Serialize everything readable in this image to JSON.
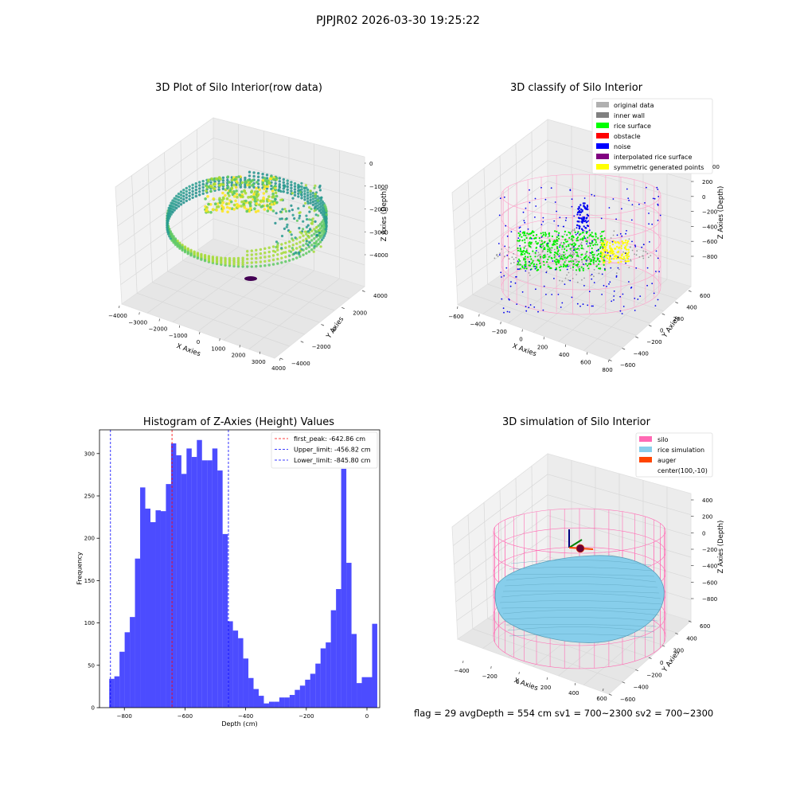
{
  "figure": {
    "suptitle": "PJPJR02 2026-03-30 19:25:22",
    "status_line": "flag = 29  avgDepth = 554 cm  sv1 = 700~2300  sv2 = 700~2300"
  },
  "panels": {
    "raw": {
      "title": "3D Plot of Silo Interior(row data)",
      "xlabel": "X Axies",
      "ylabel": "Y Axies",
      "zlabel": "Z Axies (Depth)",
      "xticks": [
        "−4000",
        "−3000",
        "−2000",
        "−1000",
        "0",
        "1000",
        "2000",
        "3000",
        "4000"
      ],
      "yticks": [
        "−4000",
        "−2000",
        "0",
        "2000",
        "4000"
      ],
      "zticks": [
        "0",
        "−1000",
        "−2000",
        "−3000",
        "−4000"
      ]
    },
    "classify": {
      "title": "3D classify of Silo Interior",
      "xlabel": "X Axies",
      "ylabel": "Y Axies",
      "zlabel": "Z Axies (Depth)",
      "xticks": [
        "−600",
        "−400",
        "−200",
        "0",
        "200",
        "400",
        "600",
        "800"
      ],
      "yticks": [
        "−600",
        "−400",
        "−200",
        "0",
        "200",
        "400",
        "600"
      ],
      "zticks": [
        "200",
        "0",
        "−200",
        "−400",
        "−600",
        "−800"
      ],
      "ztick_top_partial": "00",
      "legend": [
        {
          "label": "original data",
          "color": "#b0b0b0"
        },
        {
          "label": "inner wall",
          "color": "#808080"
        },
        {
          "label": "rice surface",
          "color": "#00ff00"
        },
        {
          "label": "obstacle",
          "color": "#ff0000"
        },
        {
          "label": "noise",
          "color": "#0000ff"
        },
        {
          "label": "interpolated rice surface",
          "color": "#800080"
        },
        {
          "label": "symmetric generated points",
          "color": "#ffff00"
        }
      ]
    },
    "simulation": {
      "title": "3D simulation of Silo Interior",
      "xlabel": "X Axies",
      "ylabel": "Y Axies",
      "zlabel": "Z Axies (Depth)",
      "xticks": [
        "−400",
        "−200",
        "0",
        "200",
        "400",
        "600"
      ],
      "yticks": [
        "−600",
        "−400",
        "−200",
        "0",
        "200",
        "400",
        "600"
      ],
      "zticks": [
        "400",
        "200",
        "0",
        "−200",
        "−400",
        "−600",
        "−800"
      ],
      "legend": [
        {
          "label": "silo",
          "color": "#ff69b4"
        },
        {
          "label": "rice simulation",
          "color": "#87ceeb"
        },
        {
          "label": "auger",
          "color": "#ff4500"
        },
        {
          "label": "center(100,-10)",
          "color": ""
        }
      ]
    }
  },
  "chart_data": {
    "type": "bar",
    "title": "Histogram of Z-Axies (Height) Values",
    "xlabel": "Depth (cm)",
    "ylabel": "Frequency",
    "xlim": [
      -882,
      42
    ],
    "ylim": [
      0,
      328
    ],
    "xticks": [
      -800,
      -600,
      -400,
      -200,
      0
    ],
    "yticks": [
      0,
      50,
      100,
      150,
      200,
      250,
      300
    ],
    "bar_color": "#0000ff",
    "bar_alpha": 0.7,
    "bins_start": -850,
    "bin_width": 17,
    "values": [
      34,
      37,
      66,
      89,
      107,
      176,
      260,
      235,
      219,
      233,
      232,
      264,
      312,
      298,
      276,
      306,
      296,
      316,
      292,
      292,
      306,
      280,
      205,
      102,
      91,
      82,
      58,
      35,
      22,
      14,
      5,
      7,
      7,
      12,
      12,
      15,
      21,
      26,
      33,
      40,
      52,
      70,
      77,
      115,
      140,
      282,
      171,
      87,
      29,
      36,
      36,
      99
    ],
    "lines": [
      {
        "label": "first_peak: -642.86 cm",
        "x": -642.86,
        "color": "#ff0000"
      },
      {
        "label": "Upper_limit: -456.82 cm",
        "x": -456.82,
        "color": "#0000ff"
      },
      {
        "label": "Lower_limit: -845.80 cm",
        "x": -845.8,
        "color": "#0000ff"
      }
    ]
  }
}
